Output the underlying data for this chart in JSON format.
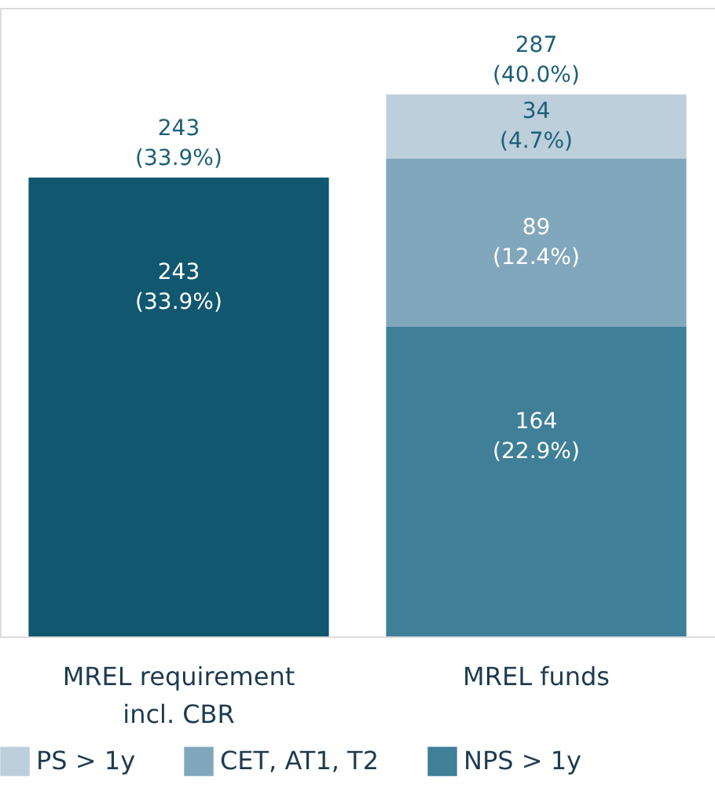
{
  "chart_data": {
    "type": "bar",
    "stacked": true,
    "categories": [
      "MREL requirement incl. CBR",
      "MREL funds"
    ],
    "series": [
      {
        "color": "#10576f",
        "values": [
          243,
          null
        ],
        "value_labels": [
          "243\n(33.9%)",
          null
        ]
      },
      {
        "name": "NPS > 1y",
        "color": "#3f7f98",
        "values": [
          null,
          164
        ],
        "value_labels": [
          null,
          "164\n(22.9%)"
        ]
      },
      {
        "name": "CET, AT1, T2",
        "color": "#81a7bc",
        "values": [
          null,
          89
        ],
        "value_labels": [
          null,
          "89\n(12.4%)"
        ]
      },
      {
        "name": "PS > 1y",
        "color": "#bccfdb",
        "values": [
          null,
          34
        ],
        "value_labels": [
          null,
          "34\n(4.7%)"
        ]
      }
    ],
    "totals": [
      "243\n(33.9%)",
      "287\n(40.0%)"
    ],
    "legend": "bottom"
  }
}
